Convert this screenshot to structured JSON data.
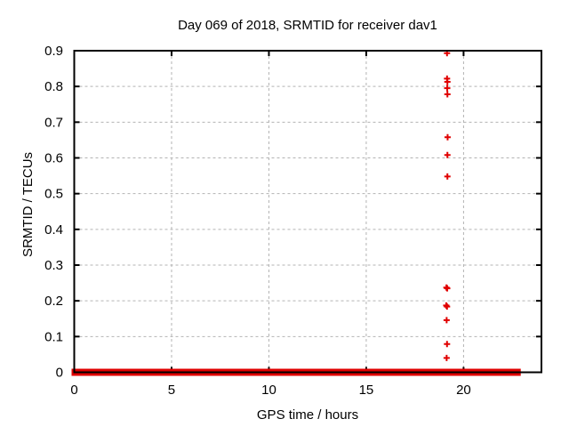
{
  "chart_data": {
    "type": "scatter",
    "title": "Day 069 of 2018, SRMTID for receiver dav1",
    "xlabel": "GPS time / hours",
    "ylabel": "SRMTID / TECUs",
    "xlim": [
      0,
      24
    ],
    "ylim": [
      0,
      0.9
    ],
    "x_ticks": [
      0,
      5,
      10,
      15,
      20
    ],
    "x_tick_labels": [
      "0",
      "5",
      "10",
      "15",
      "20"
    ],
    "y_ticks": [
      0,
      0.1,
      0.2,
      0.3,
      0.4,
      0.5,
      0.6,
      0.7,
      0.8,
      0.9
    ],
    "y_tick_labels": [
      "0",
      "0.1",
      "0.2",
      "0.3",
      "0.4",
      "0.5",
      "0.6",
      "0.7",
      "0.8",
      "0.9"
    ],
    "grid": true,
    "grid_style": "dashed",
    "legend_position": "none",
    "marker": "plus",
    "colors": {
      "series": "#e00000",
      "grid": "#b3b3b3",
      "border": "#000000",
      "background": "#ffffff"
    },
    "zero_line_segments": [
      {
        "y": 0,
        "x_start": 0.0,
        "x_end": 14.2
      },
      {
        "y": 0,
        "x_start": 14.35,
        "x_end": 18.95
      },
      {
        "y": 0,
        "x_start": 19.2,
        "x_end": 22.8
      }
    ],
    "outlier_points": [
      {
        "x": 19.15,
        "y": 0.893
      },
      {
        "x": 19.15,
        "y": 0.822
      },
      {
        "x": 19.17,
        "y": 0.813
      },
      {
        "x": 19.16,
        "y": 0.795
      },
      {
        "x": 19.17,
        "y": 0.778
      },
      {
        "x": 19.18,
        "y": 0.658
      },
      {
        "x": 19.17,
        "y": 0.608
      },
      {
        "x": 19.17,
        "y": 0.548
      },
      {
        "x": 19.12,
        "y": 0.237
      },
      {
        "x": 19.16,
        "y": 0.235
      },
      {
        "x": 19.11,
        "y": 0.187
      },
      {
        "x": 19.15,
        "y": 0.184
      },
      {
        "x": 19.13,
        "y": 0.146
      },
      {
        "x": 19.15,
        "y": 0.079
      },
      {
        "x": 19.13,
        "y": 0.04
      }
    ]
  }
}
